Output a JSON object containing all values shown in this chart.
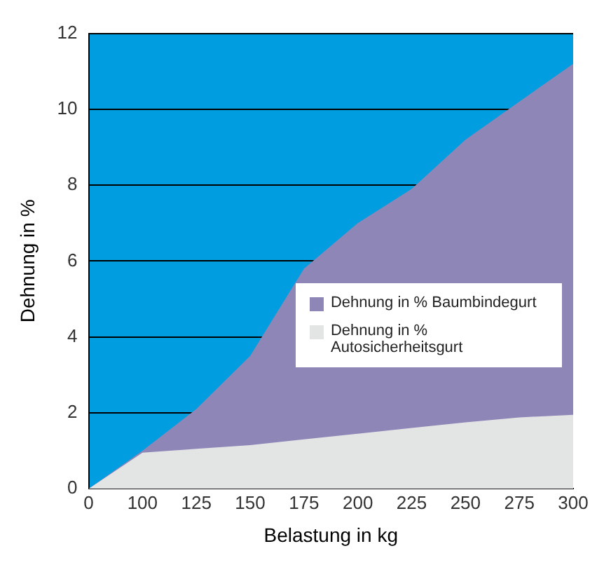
{
  "chart_data": {
    "type": "area",
    "xlabel": "Belastung in kg",
    "ylabel": "Dehnung in %",
    "categories": [
      "0",
      "100",
      "125",
      "150",
      "175",
      "200",
      "225",
      "250",
      "275",
      "300"
    ],
    "series": [
      {
        "name": "Dehnung in % Baumbindegurt",
        "color": "#8f86b8",
        "values": [
          0,
          1.0,
          2.1,
          3.5,
          5.8,
          7.0,
          7.9,
          9.2,
          10.2,
          11.2
        ]
      },
      {
        "name": "Dehnung in % Autosicherheitsgurt",
        "color": "#e3e4e4",
        "values": [
          0,
          0.95,
          1.05,
          1.15,
          1.3,
          1.45,
          1.6,
          1.75,
          1.88,
          1.95
        ]
      }
    ],
    "ylim": [
      0,
      12
    ],
    "yticks": [
      0,
      2,
      4,
      6,
      8,
      10,
      12
    ],
    "grid": "y",
    "legend": "right"
  }
}
